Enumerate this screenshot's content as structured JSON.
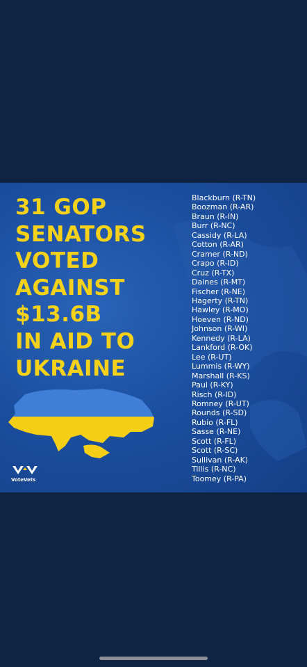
{
  "post": {
    "headline": [
      "31 GOP",
      "SENATORS",
      "VOTED",
      "AGAINST",
      "$13.6B",
      "IN AID TO",
      "UKRAINE"
    ],
    "senators": [
      "Blackburn (R-TN)",
      "Boozman (R-AR)",
      "Braun (R-IN)",
      "Burr (R-NC)",
      "Cassidy (R-LA)",
      "Cotton (R-AR)",
      "Cramer (R-ND)",
      "Crapo (R-ID)",
      "Cruz (R-TX)",
      "Daines (R-MT)",
      "Fischer (R-NE)",
      "Hagerty (R-TN)",
      "Hawley (R-MO)",
      "Hoeven (R-ND)",
      "Johnson (R-WI)",
      "Kennedy (R-LA)",
      "Lankford (R-OK)",
      "Lee (R-UT)",
      "Lummis (R-WY)",
      "Marshall (R-KS)",
      "Paul (R-KY)",
      "Risch (R-ID)",
      "Romney (R-UT)",
      "Rounds (R-SD)",
      "Rubio (R-FL)",
      "Sasse (R-NE)",
      "Scott (R-FL)",
      "Scott (R-SC)",
      "Sullivan (R-AK)",
      "Tillis (R-NC)",
      "Toomey (R-PA)"
    ],
    "logo_text": "VoteVets"
  }
}
